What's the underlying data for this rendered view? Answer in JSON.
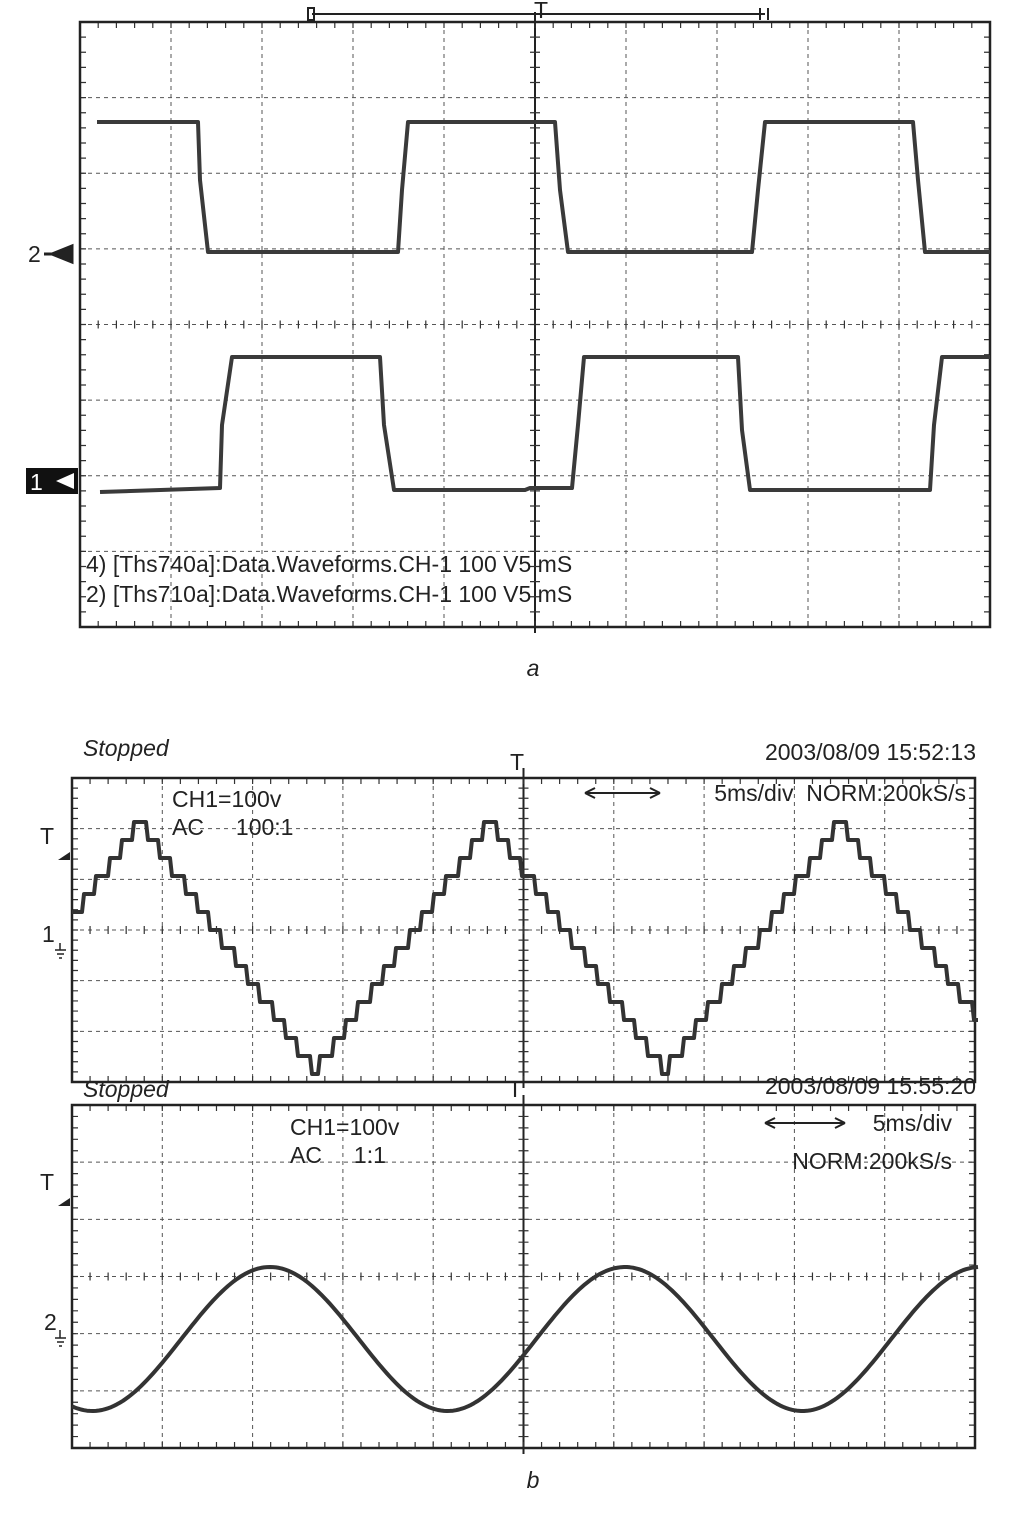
{
  "panel_a": {
    "trigger_label": "T",
    "channel_2": "2",
    "channel_1": "1",
    "legend": [
      "4) [Ths740a]:Data.Waveforms.CH-1 100 V5 mS",
      "2) [Ths710a]:Data.Waveforms.CH-1 100 V5 mS"
    ],
    "caption": "a"
  },
  "panel_b": {
    "caption": "b",
    "top": {
      "status": "Stopped",
      "timestamp": "2003/08/09   15:52:13",
      "trigger_label": "T",
      "level_label": "T",
      "channel": "1",
      "setting_1": "CH1=100v",
      "setting_2": "AC     100:1",
      "timebase": "5ms/div  NORM:200kS/s"
    },
    "bottom": {
      "status": "Stopped",
      "timestamp": "2003/08/09   15:55:20",
      "trigger_label": "T",
      "level_label": "T",
      "channel": "2",
      "setting_1": "CH1=100v",
      "setting_2": "AC     1:1",
      "timebase": "5ms/div",
      "sample_rate": "NORM:200kS/s"
    }
  }
}
